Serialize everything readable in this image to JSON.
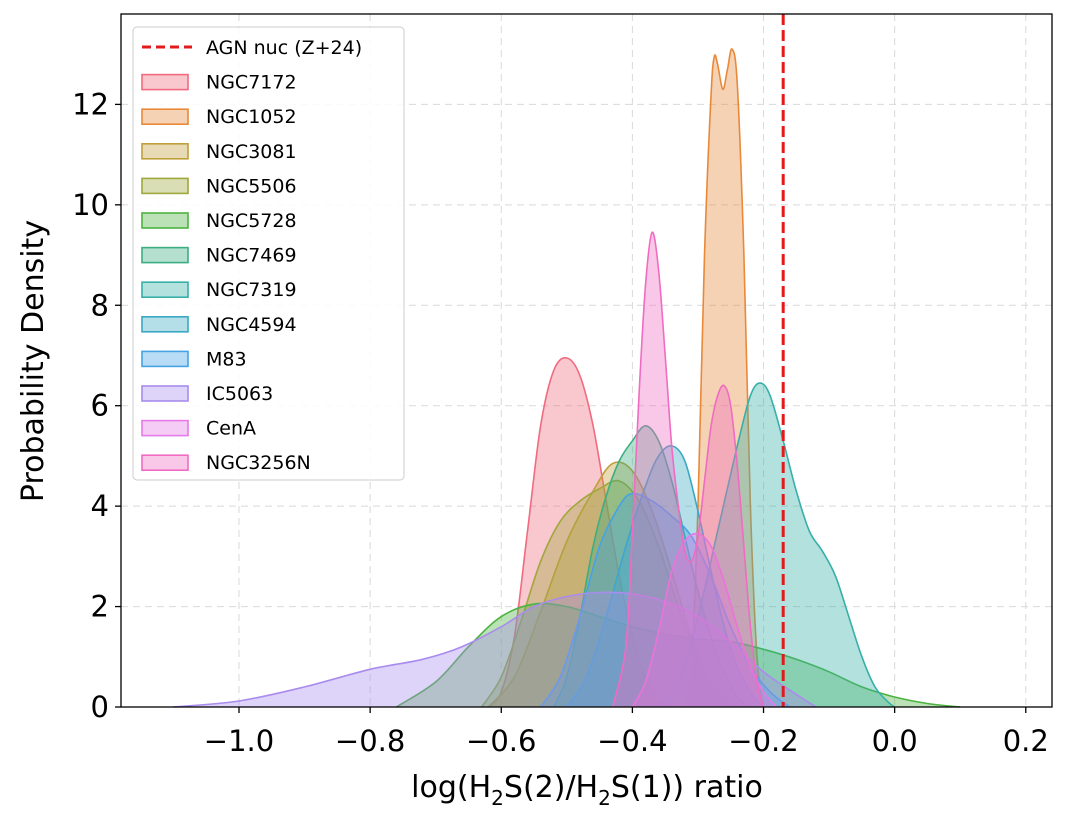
{
  "chart_data": {
    "type": "area",
    "title": "",
    "xlabel": "log(H2S(2)/H2S(1)) ratio",
    "xlabel_parts": {
      "pre": "log(H",
      "sub1": "2",
      "mid": "S(2)/H",
      "sub2": "2",
      "post": "S(1)) ratio"
    },
    "ylabel": "Probability Density",
    "xlim": [
      -1.18,
      0.24
    ],
    "ylim": [
      0,
      13.8
    ],
    "xticks": [
      -1.0,
      -0.8,
      -0.6,
      -0.4,
      -0.2,
      0.0,
      0.2
    ],
    "xtick_labels": [
      "−1.0",
      "−0.8",
      "−0.6",
      "−0.4",
      "−0.2",
      "0.0",
      "0.2"
    ],
    "yticks": [
      0,
      2,
      4,
      6,
      8,
      10,
      12
    ],
    "ytick_labels": [
      "0",
      "2",
      "4",
      "6",
      "8",
      "10",
      "12"
    ],
    "grid": true,
    "legend_position": "top-left",
    "reference_line": {
      "label": "AGN nuc (Z+24)",
      "x": -0.17,
      "color": "#e31a1c",
      "style": "dashed"
    },
    "series": [
      {
        "name": "NGC7172",
        "color": "#f06b7f",
        "points": [
          [
            -0.62,
            0
          ],
          [
            -0.6,
            0.3
          ],
          [
            -0.58,
            1.4
          ],
          [
            -0.56,
            3.5
          ],
          [
            -0.54,
            5.6
          ],
          [
            -0.52,
            6.7
          ],
          [
            -0.5,
            6.95
          ],
          [
            -0.48,
            6.6
          ],
          [
            -0.46,
            5.6
          ],
          [
            -0.44,
            4.1
          ],
          [
            -0.42,
            2.6
          ],
          [
            -0.4,
            1.4
          ],
          [
            -0.38,
            0.6
          ],
          [
            -0.36,
            0.15
          ],
          [
            -0.34,
            0
          ]
        ]
      },
      {
        "name": "NGC1052",
        "color": "#e8893a",
        "points": [
          [
            -0.32,
            0
          ],
          [
            -0.31,
            0.8
          ],
          [
            -0.3,
            4.0
          ],
          [
            -0.29,
            9.0
          ],
          [
            -0.28,
            12.2
          ],
          [
            -0.275,
            12.95
          ],
          [
            -0.27,
            12.8
          ],
          [
            -0.262,
            12.3
          ],
          [
            -0.255,
            12.7
          ],
          [
            -0.248,
            13.1
          ],
          [
            -0.24,
            12.4
          ],
          [
            -0.23,
            9.0
          ],
          [
            -0.22,
            4.0
          ],
          [
            -0.21,
            1.0
          ],
          [
            -0.2,
            0
          ]
        ]
      },
      {
        "name": "NGC3081",
        "color": "#bf9f3c",
        "points": [
          [
            -0.62,
            0
          ],
          [
            -0.58,
            0.6
          ],
          [
            -0.54,
            1.9
          ],
          [
            -0.5,
            3.3
          ],
          [
            -0.46,
            4.3
          ],
          [
            -0.43,
            4.85
          ],
          [
            -0.4,
            4.7
          ],
          [
            -0.37,
            3.9
          ],
          [
            -0.34,
            2.7
          ],
          [
            -0.31,
            1.4
          ],
          [
            -0.28,
            0.5
          ],
          [
            -0.25,
            0
          ]
        ]
      },
      {
        "name": "NGC5506",
        "color": "#9fa83c",
        "points": [
          [
            -0.63,
            0
          ],
          [
            -0.6,
            0.6
          ],
          [
            -0.57,
            1.7
          ],
          [
            -0.54,
            2.9
          ],
          [
            -0.51,
            3.7
          ],
          [
            -0.48,
            4.1
          ],
          [
            -0.45,
            4.35
          ],
          [
            -0.42,
            4.5
          ],
          [
            -0.39,
            4.1
          ],
          [
            -0.36,
            3.2
          ],
          [
            -0.33,
            2.0
          ],
          [
            -0.3,
            1.0
          ],
          [
            -0.27,
            0.3
          ],
          [
            -0.24,
            0
          ]
        ]
      },
      {
        "name": "NGC5728",
        "color": "#4db340",
        "points": [
          [
            -0.76,
            0
          ],
          [
            -0.7,
            0.5
          ],
          [
            -0.65,
            1.2
          ],
          [
            -0.6,
            1.8
          ],
          [
            -0.55,
            2.05
          ],
          [
            -0.5,
            2.0
          ],
          [
            -0.45,
            1.8
          ],
          [
            -0.4,
            1.6
          ],
          [
            -0.35,
            1.45
          ],
          [
            -0.3,
            1.35
          ],
          [
            -0.25,
            1.3
          ],
          [
            -0.2,
            1.15
          ],
          [
            -0.15,
            0.95
          ],
          [
            -0.1,
            0.7
          ],
          [
            -0.05,
            0.4
          ],
          [
            0.0,
            0.2
          ],
          [
            0.05,
            0.07
          ],
          [
            0.1,
            0
          ]
        ]
      },
      {
        "name": "NGC7469",
        "color": "#3dae82",
        "points": [
          [
            -0.52,
            0
          ],
          [
            -0.5,
            0.6
          ],
          [
            -0.48,
            1.8
          ],
          [
            -0.46,
            3.2
          ],
          [
            -0.44,
            4.2
          ],
          [
            -0.42,
            4.9
          ],
          [
            -0.4,
            5.3
          ],
          [
            -0.38,
            5.6
          ],
          [
            -0.36,
            5.3
          ],
          [
            -0.34,
            4.5
          ],
          [
            -0.32,
            3.4
          ],
          [
            -0.3,
            2.3
          ],
          [
            -0.28,
            1.4
          ],
          [
            -0.26,
            0.7
          ],
          [
            -0.24,
            0.2
          ],
          [
            -0.22,
            0
          ]
        ]
      },
      {
        "name": "NGC7319",
        "color": "#36b0a8",
        "points": [
          [
            -0.36,
            0
          ],
          [
            -0.33,
            0.5
          ],
          [
            -0.3,
            1.8
          ],
          [
            -0.27,
            3.5
          ],
          [
            -0.24,
            5.2
          ],
          [
            -0.22,
            6.2
          ],
          [
            -0.205,
            6.45
          ],
          [
            -0.19,
            6.2
          ],
          [
            -0.17,
            5.3
          ],
          [
            -0.15,
            4.3
          ],
          [
            -0.13,
            3.5
          ],
          [
            -0.11,
            3.1
          ],
          [
            -0.09,
            2.6
          ],
          [
            -0.07,
            1.8
          ],
          [
            -0.05,
            1.0
          ],
          [
            -0.03,
            0.4
          ],
          [
            -0.01,
            0.1
          ],
          [
            0.0,
            0
          ]
        ]
      },
      {
        "name": "NGC4594",
        "color": "#3aa8c2",
        "points": [
          [
            -0.5,
            0
          ],
          [
            -0.47,
            0.6
          ],
          [
            -0.44,
            1.8
          ],
          [
            -0.41,
            3.2
          ],
          [
            -0.38,
            4.4
          ],
          [
            -0.36,
            5.0
          ],
          [
            -0.34,
            5.2
          ],
          [
            -0.32,
            4.9
          ],
          [
            -0.3,
            3.9
          ],
          [
            -0.28,
            2.7
          ],
          [
            -0.26,
            1.6
          ],
          [
            -0.24,
            0.8
          ],
          [
            -0.22,
            0.3
          ],
          [
            -0.2,
            0
          ]
        ]
      },
      {
        "name": "M83",
        "color": "#45a3e5",
        "points": [
          [
            -0.54,
            0
          ],
          [
            -0.51,
            0.6
          ],
          [
            -0.48,
            1.8
          ],
          [
            -0.45,
            3.2
          ],
          [
            -0.42,
            4.0
          ],
          [
            -0.4,
            4.25
          ],
          [
            -0.37,
            4.1
          ],
          [
            -0.34,
            3.8
          ],
          [
            -0.31,
            3.4
          ],
          [
            -0.28,
            2.6
          ],
          [
            -0.25,
            1.6
          ],
          [
            -0.22,
            0.8
          ],
          [
            -0.19,
            0.3
          ],
          [
            -0.16,
            0
          ]
        ]
      },
      {
        "name": "IC5063",
        "color": "#a98ced",
        "points": [
          [
            -1.1,
            0
          ],
          [
            -1.0,
            0.12
          ],
          [
            -0.9,
            0.4
          ],
          [
            -0.8,
            0.75
          ],
          [
            -0.72,
            0.95
          ],
          [
            -0.66,
            1.2
          ],
          [
            -0.6,
            1.6
          ],
          [
            -0.55,
            2.0
          ],
          [
            -0.5,
            2.2
          ],
          [
            -0.45,
            2.28
          ],
          [
            -0.4,
            2.25
          ],
          [
            -0.35,
            2.1
          ],
          [
            -0.3,
            1.8
          ],
          [
            -0.25,
            1.3
          ],
          [
            -0.2,
            0.7
          ],
          [
            -0.15,
            0.25
          ],
          [
            -0.12,
            0
          ]
        ]
      },
      {
        "name": "CenA",
        "color": "#e57ae8",
        "points": [
          [
            -0.4,
            0
          ],
          [
            -0.38,
            0.5
          ],
          [
            -0.36,
            1.5
          ],
          [
            -0.34,
            2.7
          ],
          [
            -0.32,
            3.3
          ],
          [
            -0.3,
            3.45
          ],
          [
            -0.28,
            3.2
          ],
          [
            -0.26,
            2.5
          ],
          [
            -0.24,
            1.6
          ],
          [
            -0.22,
            0.8
          ],
          [
            -0.2,
            0.3
          ],
          [
            -0.18,
            0
          ]
        ]
      },
      {
        "name": "NGC3256N",
        "color": "#f06cc2",
        "points": [
          [
            -0.43,
            0
          ],
          [
            -0.41,
            1.2
          ],
          [
            -0.4,
            3.5
          ],
          [
            -0.39,
            6.2
          ],
          [
            -0.38,
            8.4
          ],
          [
            -0.37,
            9.45
          ],
          [
            -0.36,
            8.7
          ],
          [
            -0.35,
            7.0
          ],
          [
            -0.34,
            5.2
          ],
          [
            -0.33,
            4.0
          ],
          [
            -0.32,
            3.1
          ],
          [
            -0.31,
            2.9
          ],
          [
            -0.3,
            3.4
          ],
          [
            -0.29,
            4.5
          ],
          [
            -0.28,
            5.6
          ],
          [
            -0.27,
            6.2
          ],
          [
            -0.26,
            6.4
          ],
          [
            -0.25,
            6.0
          ],
          [
            -0.24,
            4.8
          ],
          [
            -0.23,
            3.2
          ],
          [
            -0.22,
            1.6
          ],
          [
            -0.21,
            0.5
          ],
          [
            -0.2,
            0
          ]
        ]
      }
    ]
  }
}
